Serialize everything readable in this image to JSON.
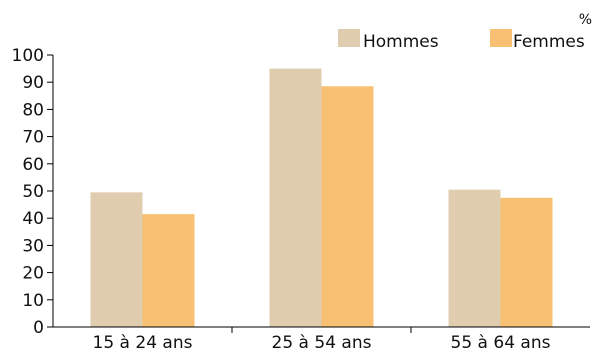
{
  "chart_data": {
    "type": "bar",
    "unit": "%",
    "categories": [
      "15 à 24 ans",
      "25 à 54 ans",
      "55 à 64 ans"
    ],
    "series": [
      {
        "name": "Hommes",
        "values": [
          49.5,
          95.0,
          50.5
        ],
        "color": "#e0cdb0"
      },
      {
        "name": "Femmes",
        "values": [
          41.5,
          88.5,
          47.5
        ],
        "color": "#f8c072"
      }
    ],
    "ylim": [
      0,
      100
    ],
    "yticks": [
      "0",
      "10",
      "20",
      "30",
      "40",
      "50",
      "60",
      "70",
      "80",
      "90",
      "100"
    ],
    "grid": false,
    "legend_position": "top-right"
  }
}
